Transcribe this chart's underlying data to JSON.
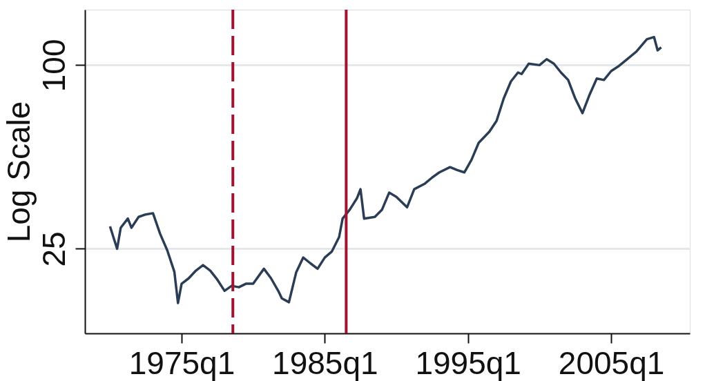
{
  "chart_data": {
    "type": "line",
    "ylabel": "Log Scale",
    "log": "y",
    "grid": "y",
    "marker": "none",
    "line_style": "solid",
    "xlim": [
      "1968-04",
      "2010-07"
    ],
    "ylim": [
      13.2,
      152
    ],
    "xticks": [
      {
        "value": "1975-01",
        "label": "1975q1"
      },
      {
        "value": "1985-01",
        "label": "1985q1"
      },
      {
        "value": "1995-01",
        "label": "1995q1"
      },
      {
        "value": "2005-01",
        "label": "2005q1"
      }
    ],
    "yticks": [
      25,
      100
    ],
    "ref_lines": [
      {
        "axis": "x",
        "value": "1978-08",
        "color": "#a3122f",
        "line_style": "dashed"
      },
      {
        "axis": "x",
        "value": "1986-07",
        "color": "#a3122f",
        "line_style": "solid"
      }
    ],
    "series": [
      {
        "color": "#2b3d55",
        "x": [
          "1970-01",
          "1970-07",
          "1970-10",
          "1971-04",
          "1971-07",
          "1972-01",
          "1972-07",
          "1973-01",
          "1973-07",
          "1974-01",
          "1974-07",
          "1974-10",
          "1975-01",
          "1975-07",
          "1976-01",
          "1976-07",
          "1977-01",
          "1977-07",
          "1978-01",
          "1978-07",
          "1979-01",
          "1979-07",
          "1980-01",
          "1980-10",
          "1981-04",
          "1981-10",
          "1982-01",
          "1982-07",
          "1983-01",
          "1983-07",
          "1984-01",
          "1984-07",
          "1985-01",
          "1985-07",
          "1986-01",
          "1986-04",
          "1986-10",
          "1987-04",
          "1987-07",
          "1987-10",
          "1988-07",
          "1989-01",
          "1989-07",
          "1990-01",
          "1990-10",
          "1991-04",
          "1992-01",
          "1992-07",
          "1993-01",
          "1993-10",
          "1994-04",
          "1994-10",
          "1995-04",
          "1995-10",
          "1996-07",
          "1997-01",
          "1997-07",
          "1998-01",
          "1998-07",
          "1998-10",
          "1999-04",
          "2000-01",
          "2000-07",
          "2001-01",
          "2001-07",
          "2002-01",
          "2002-07",
          "2003-01",
          "2003-07",
          "2004-01",
          "2004-07",
          "2005-01",
          "2005-07",
          "2006-04",
          "2006-10",
          "2007-07",
          "2008-01",
          "2008-04",
          "2008-07"
        ],
        "values": [
          29.6,
          25,
          29.3,
          31.4,
          29.3,
          31.8,
          32.4,
          32.7,
          28.0,
          24.7,
          21.0,
          16.6,
          19.2,
          20.0,
          21.2,
          22.1,
          21.2,
          19.8,
          18.2,
          18.9,
          18.7,
          19.2,
          19.2,
          21.5,
          20.0,
          18.2,
          17.2,
          16.7,
          20.9,
          23.4,
          22.4,
          21.5,
          23.4,
          24.5,
          27.3,
          31.4,
          33.6,
          36.6,
          39.2,
          31.4,
          31.8,
          33.6,
          38.2,
          37.0,
          34.2,
          39.2,
          40.9,
          42.8,
          44.5,
          46.3,
          45.3,
          44.5,
          48.9,
          55.6,
          60.5,
          65.7,
          77.7,
          88.4,
          94.6,
          93.5,
          101.1,
          100,
          104.6,
          101.1,
          94.6,
          89.4,
          77.7,
          69.6,
          80.0,
          90.4,
          89.4,
          95.6,
          99,
          105.7,
          110.6,
          121.6,
          123.6,
          111.8,
          114.3
        ]
      }
    ]
  }
}
